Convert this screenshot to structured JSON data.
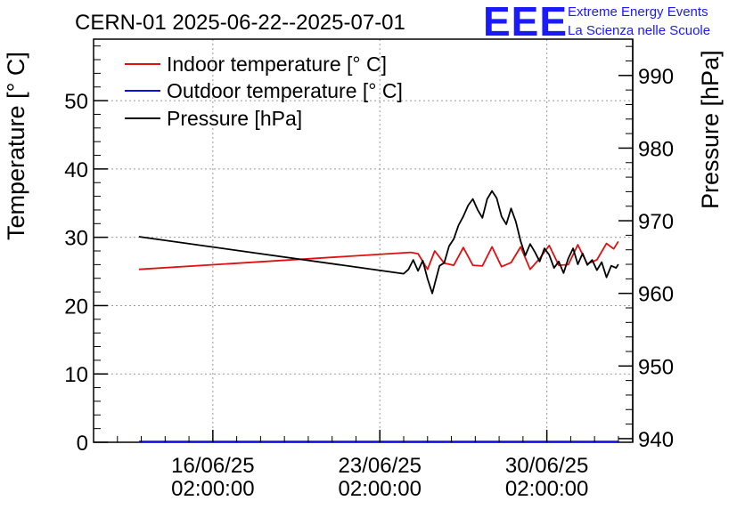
{
  "chart_data": {
    "type": "line",
    "title": "CERN-01 2025-06-22--2025-07-01",
    "ylabel": "Temperature [° C]",
    "y2label": "Pressure [hPa]",
    "ylim": [
      0,
      59
    ],
    "y2lim": [
      939.5,
      995
    ],
    "x_ticks": [
      {
        "day": 0,
        "date": "16/06/25",
        "time": "02:00:00"
      },
      {
        "day": 7,
        "date": "23/06/25",
        "time": "02:00:00"
      },
      {
        "day": 14,
        "date": "30/06/25",
        "time": "02:00:00"
      }
    ],
    "xlim": [
      -5,
      17.6
    ],
    "y_ticks": [
      0,
      10,
      20,
      30,
      40,
      50
    ],
    "y2_ticks": [
      940,
      950,
      960,
      970,
      980,
      990
    ],
    "grid": true,
    "legend_position": "top-left",
    "series": [
      {
        "name": "Indoor temperature [° C]",
        "axis": "left",
        "color": "#e01010",
        "x": [
          -3.1,
          8.3,
          8.6,
          9.0,
          9.3,
          9.7,
          10.1,
          10.5,
          10.9,
          11.3,
          11.7,
          12.1,
          12.5,
          12.9,
          13.3,
          13.7,
          14.1,
          14.5,
          14.9,
          15.3,
          15.7,
          16.1,
          16.5,
          16.8,
          17.0
        ],
        "values": [
          25.3,
          27.8,
          27.6,
          25.3,
          28.0,
          26.2,
          25.9,
          28.5,
          25.9,
          25.8,
          28.6,
          25.7,
          26.3,
          28.6,
          25.3,
          26.9,
          28.8,
          25.9,
          26.0,
          28.9,
          26.1,
          26.7,
          29.1,
          28.3,
          29.4
        ]
      },
      {
        "name": "Outdoor temperature [° C]",
        "axis": "left",
        "color": "#1010e0",
        "x": [
          -3.1,
          17.0
        ],
        "values": [
          0.1,
          0.1
        ]
      },
      {
        "name": "Pressure [hPa]",
        "axis": "right",
        "color": "#000000",
        "x": [
          -3.1,
          8.0,
          8.2,
          8.4,
          8.6,
          8.8,
          9.0,
          9.2,
          9.3,
          9.5,
          9.7,
          9.9,
          10.1,
          10.3,
          10.5,
          10.7,
          10.9,
          11.1,
          11.3,
          11.5,
          11.7,
          11.9,
          12.1,
          12.3,
          12.5,
          12.7,
          12.9,
          13.1,
          13.3,
          13.5,
          13.7,
          13.9,
          14.1,
          14.3,
          14.5,
          14.7,
          14.9,
          15.1,
          15.3,
          15.5,
          15.7,
          15.9,
          16.1,
          16.3,
          16.5,
          16.7,
          16.9,
          17.0
        ],
        "values": [
          967.8,
          962.7,
          963.3,
          964.6,
          963.1,
          964.5,
          962.0,
          960.0,
          961.3,
          963.8,
          964.2,
          966.5,
          967.5,
          969.4,
          970.6,
          972.1,
          973.0,
          971.5,
          970.4,
          973.0,
          974.1,
          973.1,
          970.6,
          969.5,
          971.7,
          969.9,
          967.2,
          965.2,
          966.8,
          965.7,
          964.4,
          966.2,
          965.3,
          963.5,
          964.4,
          962.8,
          964.8,
          966.2,
          964.0,
          965.5,
          963.9,
          964.6,
          963.2,
          964.3,
          962.2,
          963.8,
          963.5,
          964.0
        ]
      }
    ]
  },
  "logo": {
    "letters": "EEE",
    "line1": "Extreme Energy Events",
    "line2": "La Scienza nelle Scuole"
  }
}
